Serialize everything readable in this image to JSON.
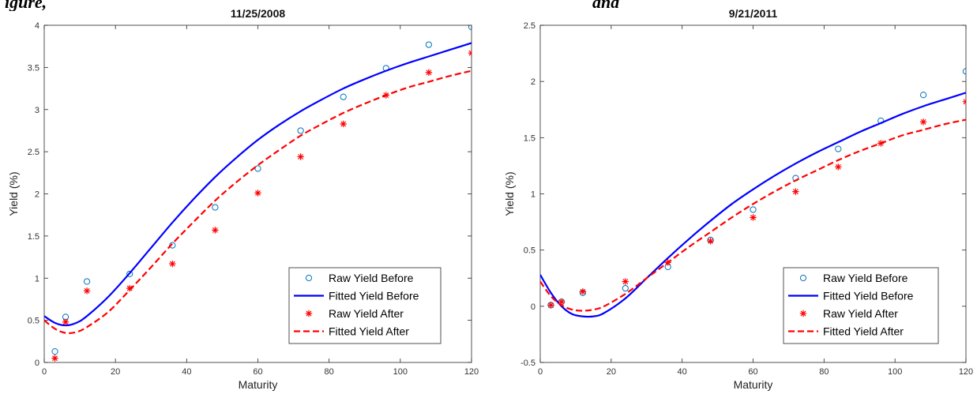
{
  "caption": {
    "left": "igure,",
    "right": "and"
  },
  "colors": {
    "before": "#0000ff",
    "before_markers": "#0072bd",
    "after": "#ff0000"
  },
  "legend_labels": [
    "Raw Yield Before",
    "Fitted Yield Before",
    "Raw Yield After",
    "Fitted Yield After"
  ],
  "chart_data": [
    {
      "type": "line",
      "title": "11/25/2008",
      "xlabel": "Maturity",
      "ylabel": "Yield (%)",
      "xlim": [
        0,
        120
      ],
      "ylim": [
        0,
        4
      ],
      "xticks": [
        0,
        20,
        40,
        60,
        80,
        100,
        120
      ],
      "yticks": [
        0,
        0.5,
        1,
        1.5,
        2,
        2.5,
        3,
        3.5,
        4
      ],
      "ytick_labels": [
        "0",
        "0.5",
        "1",
        "1.5",
        "2",
        "2.5",
        "3",
        "3.5",
        "4"
      ],
      "legend_position": "bottom-right",
      "series": [
        {
          "name": "Raw Yield Before",
          "kind": "scatter",
          "marker": "circle",
          "x": [
            3,
            6,
            12,
            24,
            36,
            48,
            60,
            72,
            84,
            96,
            108,
            120
          ],
          "y": [
            0.13,
            0.54,
            0.96,
            1.05,
            1.39,
            1.84,
            2.3,
            2.75,
            3.15,
            3.49,
            3.77,
            3.98
          ]
        },
        {
          "name": "Fitted Yield Before",
          "kind": "line",
          "style": "solid",
          "x": [
            0,
            3,
            6,
            9,
            12,
            18,
            24,
            30,
            36,
            42,
            48,
            54,
            60,
            66,
            72,
            78,
            84,
            90,
            96,
            102,
            108,
            114,
            120
          ],
          "y": [
            0.55,
            0.47,
            0.44,
            0.47,
            0.55,
            0.78,
            1.06,
            1.36,
            1.66,
            1.94,
            2.2,
            2.43,
            2.64,
            2.82,
            2.98,
            3.12,
            3.25,
            3.36,
            3.46,
            3.55,
            3.63,
            3.71,
            3.79
          ]
        },
        {
          "name": "Raw Yield After",
          "kind": "scatter",
          "marker": "asterisk",
          "x": [
            3,
            6,
            12,
            24,
            36,
            48,
            60,
            72,
            84,
            96,
            108,
            120
          ],
          "y": [
            0.05,
            0.48,
            0.85,
            0.88,
            1.17,
            1.57,
            2.01,
            2.44,
            2.83,
            3.17,
            3.44,
            3.67
          ]
        },
        {
          "name": "Fitted Yield After",
          "kind": "line",
          "style": "dashed",
          "x": [
            0,
            3,
            6,
            9,
            12,
            18,
            24,
            30,
            36,
            42,
            48,
            54,
            60,
            66,
            72,
            78,
            84,
            90,
            96,
            102,
            108,
            114,
            120
          ],
          "y": [
            0.5,
            0.4,
            0.35,
            0.36,
            0.42,
            0.6,
            0.86,
            1.13,
            1.41,
            1.67,
            1.92,
            2.14,
            2.34,
            2.52,
            2.69,
            2.83,
            2.96,
            3.07,
            3.17,
            3.26,
            3.33,
            3.4,
            3.46
          ]
        }
      ]
    },
    {
      "type": "line",
      "title": "9/21/2011",
      "xlabel": "Maturity",
      "ylabel": "Yield (%)",
      "xlim": [
        0,
        120
      ],
      "ylim": [
        -0.5,
        2.5
      ],
      "xticks": [
        0,
        20,
        40,
        60,
        80,
        100,
        120
      ],
      "yticks": [
        -0.5,
        0,
        0.5,
        1,
        1.5,
        2,
        2.5
      ],
      "ytick_labels": [
        "-0.5",
        "0",
        "0.5",
        "1",
        "1.5",
        "2",
        "2.5"
      ],
      "legend_position": "bottom-right",
      "series": [
        {
          "name": "Raw Yield Before",
          "kind": "scatter",
          "marker": "circle",
          "x": [
            3,
            6,
            12,
            24,
            36,
            48,
            60,
            72,
            84,
            96,
            108,
            120
          ],
          "y": [
            0.01,
            0.04,
            0.12,
            0.16,
            0.35,
            0.59,
            0.86,
            1.14,
            1.4,
            1.65,
            1.88,
            2.09
          ]
        },
        {
          "name": "Fitted Yield Before",
          "kind": "line",
          "style": "solid",
          "x": [
            0,
            3,
            6,
            9,
            12,
            15,
            18,
            24,
            30,
            36,
            42,
            48,
            54,
            60,
            66,
            72,
            78,
            84,
            90,
            96,
            102,
            108,
            114,
            120
          ],
          "y": [
            0.28,
            0.12,
            0.0,
            -0.07,
            -0.09,
            -0.09,
            -0.06,
            0.07,
            0.25,
            0.43,
            0.6,
            0.76,
            0.91,
            1.04,
            1.16,
            1.27,
            1.37,
            1.46,
            1.55,
            1.63,
            1.71,
            1.78,
            1.84,
            1.9
          ]
        },
        {
          "name": "Raw Yield After",
          "kind": "scatter",
          "marker": "asterisk",
          "x": [
            3,
            6,
            12,
            24,
            36,
            48,
            60,
            72,
            84,
            96,
            108,
            120
          ],
          "y": [
            0.01,
            0.04,
            0.13,
            0.22,
            0.39,
            0.58,
            0.79,
            1.02,
            1.24,
            1.45,
            1.64,
            1.82
          ]
        },
        {
          "name": "Fitted Yield After",
          "kind": "line",
          "style": "dashed",
          "x": [
            0,
            3,
            6,
            9,
            12,
            15,
            18,
            24,
            30,
            36,
            42,
            48,
            54,
            60,
            66,
            72,
            78,
            84,
            90,
            96,
            102,
            108,
            114,
            120
          ],
          "y": [
            0.22,
            0.09,
            0.01,
            -0.03,
            -0.04,
            -0.03,
            0.0,
            0.11,
            0.25,
            0.39,
            0.53,
            0.66,
            0.79,
            0.91,
            1.02,
            1.12,
            1.21,
            1.3,
            1.38,
            1.45,
            1.52,
            1.57,
            1.62,
            1.66
          ]
        }
      ]
    }
  ]
}
